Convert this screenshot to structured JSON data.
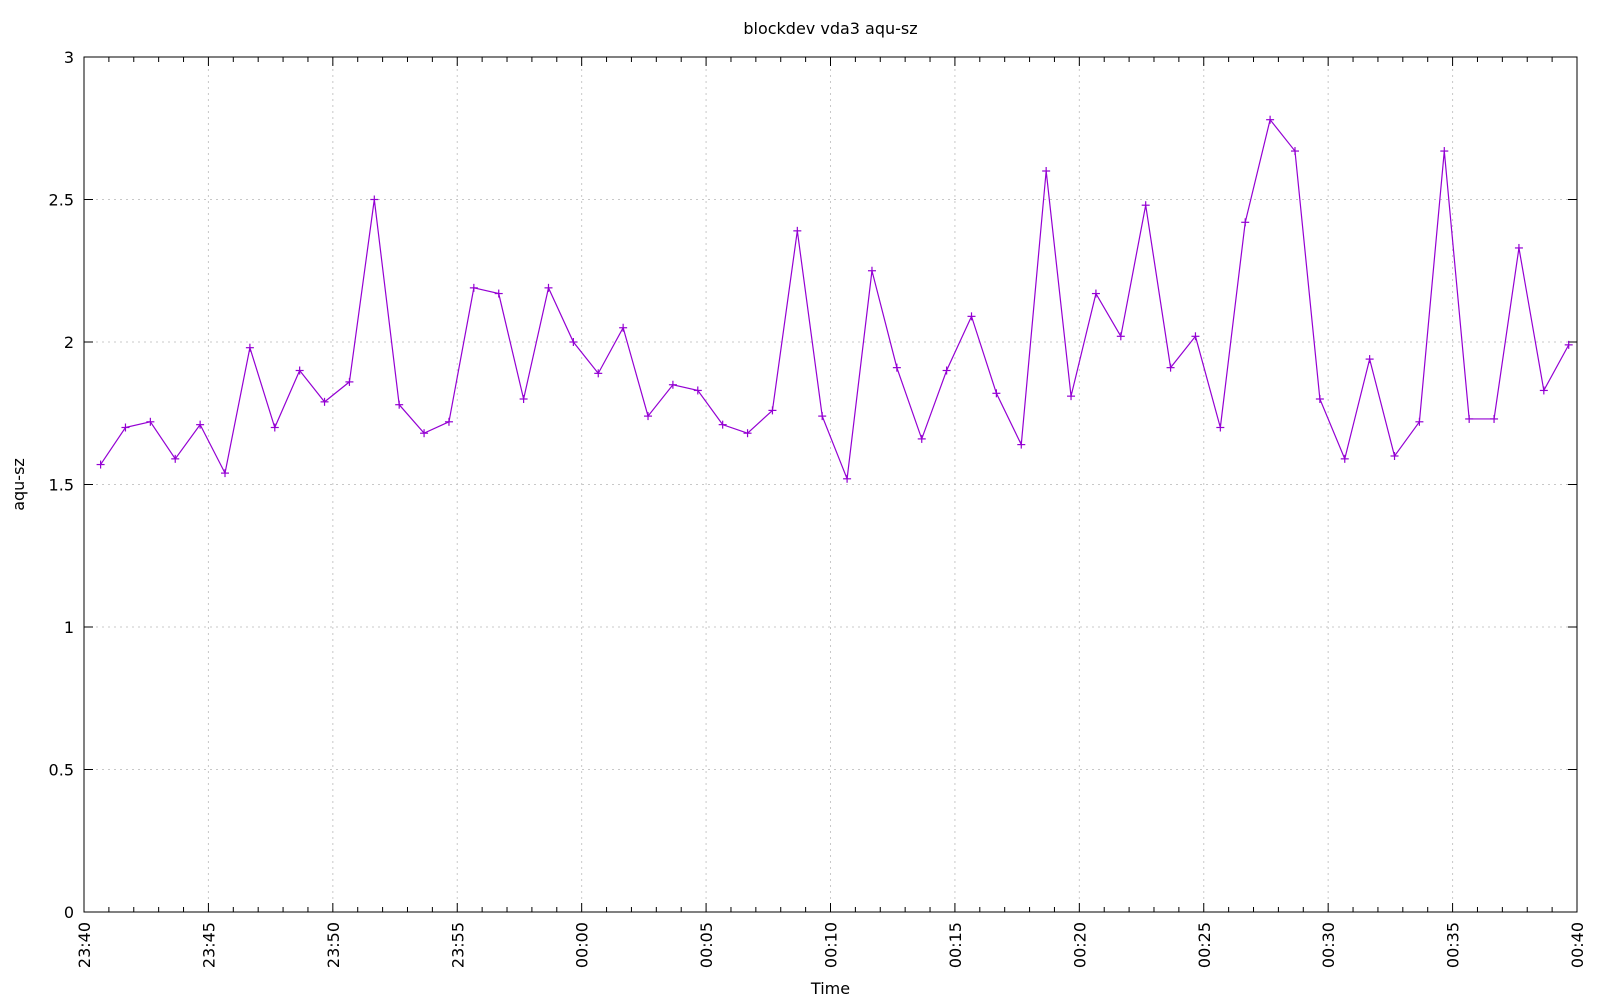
{
  "chart_data": {
    "type": "line",
    "title": "blockdev vda3 aqu-sz",
    "xlabel": "Time",
    "ylabel": "aqu-sz",
    "x_tick_labels": [
      "23:40",
      "23:45",
      "23:50",
      "23:55",
      "00:00",
      "00:05",
      "00:10",
      "00:15",
      "00:20",
      "00:25",
      "00:30",
      "00:35",
      "00:40"
    ],
    "y_tick_labels": [
      "0",
      "0.5",
      "1",
      "1.5",
      "2",
      "2.5",
      "3"
    ],
    "ylim": [
      0,
      3
    ],
    "xlim": [
      "23:40",
      "00:40"
    ],
    "grid": true,
    "legend": "none",
    "series": [
      {
        "color": "#9400d3",
        "marker": "plus",
        "x": [
          "23:40:40",
          "23:41:40",
          "23:42:40",
          "23:43:40",
          "23:44:40",
          "23:45:40",
          "23:46:40",
          "23:47:40",
          "23:48:40",
          "23:49:40",
          "23:50:40",
          "23:51:40",
          "23:52:40",
          "23:53:40",
          "23:54:40",
          "23:55:40",
          "23:56:40",
          "23:57:40",
          "23:58:40",
          "23:59:40",
          "00:00:40",
          "00:01:40",
          "00:02:40",
          "00:03:40",
          "00:04:40",
          "00:05:40",
          "00:06:40",
          "00:07:40",
          "00:08:40",
          "00:09:40",
          "00:10:40",
          "00:11:40",
          "00:12:40",
          "00:13:40",
          "00:14:40",
          "00:15:40",
          "00:16:40",
          "00:17:40",
          "00:18:40",
          "00:19:40",
          "00:20:40",
          "00:21:40",
          "00:22:40",
          "00:23:40",
          "00:24:40",
          "00:25:40",
          "00:26:40",
          "00:27:40",
          "00:28:40",
          "00:29:40",
          "00:30:40",
          "00:31:40",
          "00:32:40",
          "00:33:40",
          "00:34:40",
          "00:35:40",
          "00:36:40",
          "00:37:40",
          "00:38:40",
          "00:39:40"
        ],
        "values": [
          1.57,
          1.7,
          1.72,
          1.59,
          1.71,
          1.54,
          1.98,
          1.7,
          1.9,
          1.79,
          1.86,
          2.5,
          1.78,
          1.68,
          1.72,
          2.19,
          2.17,
          1.8,
          2.19,
          2.0,
          1.89,
          2.05,
          1.74,
          1.85,
          1.83,
          1.71,
          1.68,
          1.76,
          2.39,
          1.74,
          1.52,
          2.25,
          1.91,
          1.66,
          1.9,
          2.09,
          1.82,
          1.64,
          2.6,
          1.81,
          2.17,
          2.02,
          2.48,
          1.91,
          2.02,
          1.7,
          2.42,
          2.78,
          2.67,
          1.8,
          1.59,
          1.94,
          1.6,
          1.72,
          2.67,
          1.73,
          1.73,
          2.33,
          1.83,
          1.99
        ]
      }
    ]
  }
}
